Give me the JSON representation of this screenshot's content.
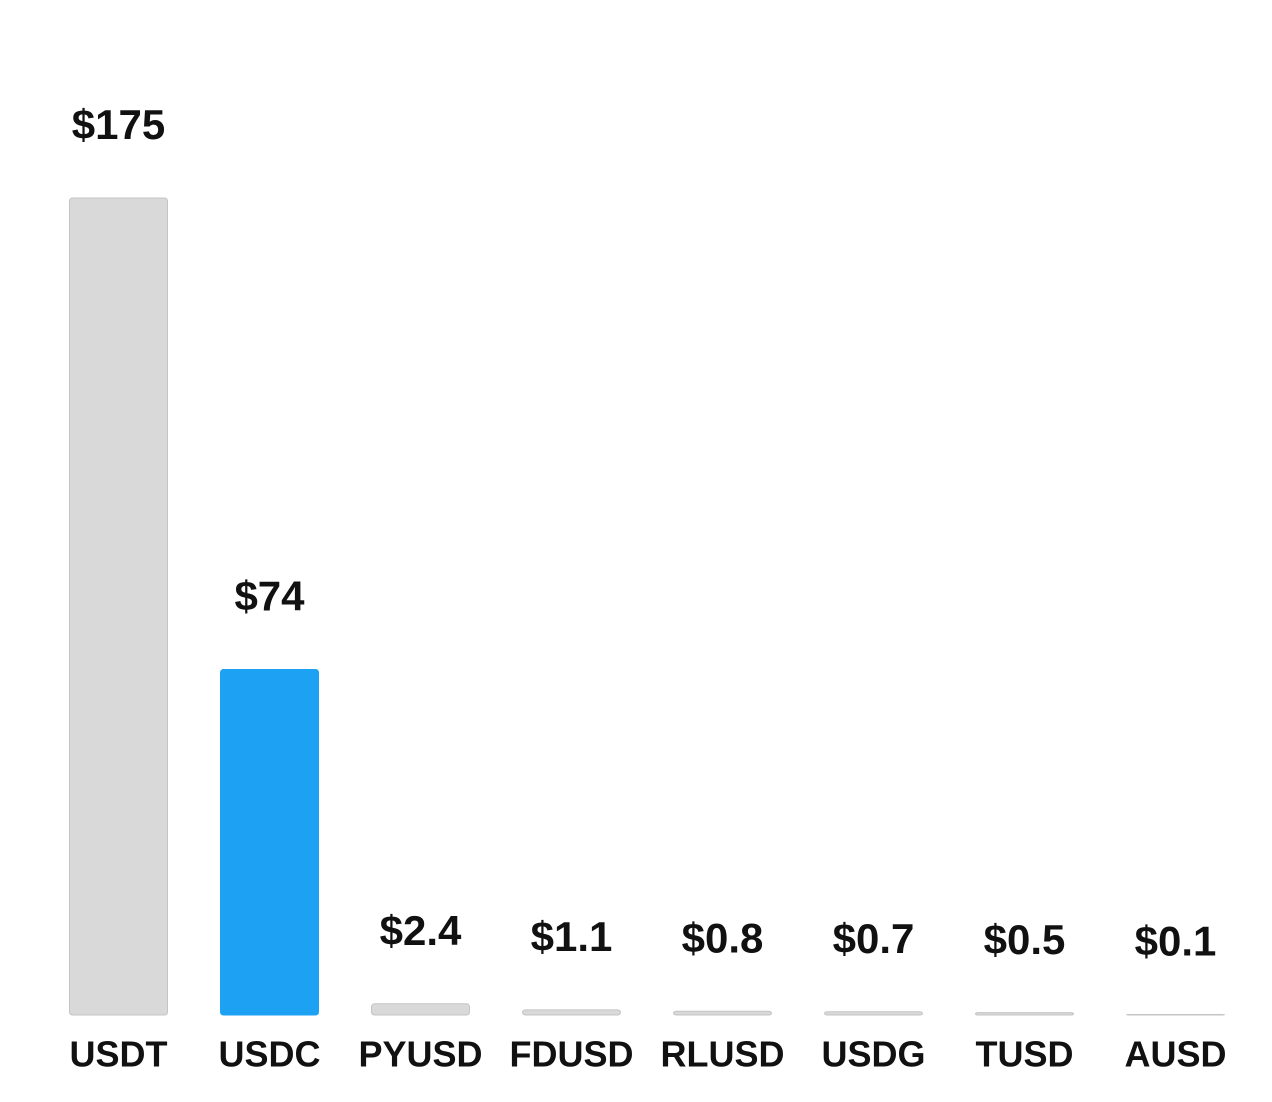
{
  "chart_data": {
    "type": "bar",
    "categories": [
      "USDT",
      "USDC",
      "PYUSD",
      "FDUSD",
      "RLUSD",
      "USDG",
      "TUSD",
      "AUSD"
    ],
    "values": [
      175,
      74,
      2.4,
      1.1,
      0.8,
      0.7,
      0.5,
      0.1
    ],
    "value_labels": [
      "$175",
      "$74",
      "$2.4",
      "$1.1",
      "$0.8",
      "$0.7",
      "$0.5",
      "$0.1"
    ],
    "colors": [
      "#d9d9d9",
      "#1da1f2",
      "#d9d9d9",
      "#d9d9d9",
      "#d9d9d9",
      "#d9d9d9",
      "#d9d9d9",
      "#d9d9d9"
    ],
    "ylim": [
      0,
      175
    ]
  }
}
